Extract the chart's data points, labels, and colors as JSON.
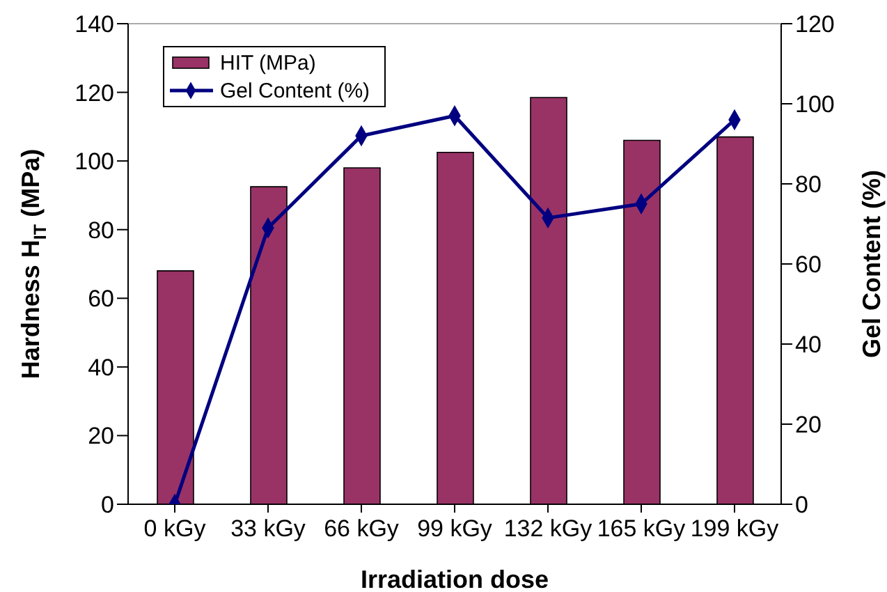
{
  "chart_data": {
    "type": "bar",
    "xlabel": "Irradiation dose",
    "ylabel": "Hardness H$_{IT}$ (MPa)",
    "y2label": "Gel Content (%)",
    "categories": [
      "0 kGy",
      "33 kGy",
      "66 kGy",
      "99 kGy",
      "132 kGy",
      "165 kGy",
      "199 kGy"
    ],
    "series": [
      {
        "name": "HIT (MPa)",
        "color": "#993366",
        "values": [
          68,
          92.5,
          98,
          102.5,
          118.5,
          106,
          107
        ]
      },
      {
        "name": "Gel Content (%)",
        "type": "line",
        "axis": "y2",
        "color": "#000080",
        "values": [
          0,
          69,
          92,
          97,
          71.5,
          75,
          96
        ]
      }
    ],
    "ylim": [
      0,
      140
    ],
    "yticks": [
      0,
      20,
      40,
      60,
      80,
      100,
      120,
      140
    ],
    "y2lim": [
      0,
      120
    ],
    "y2ticks": [
      0,
      20,
      40,
      60,
      80,
      100,
      120
    ],
    "legend": "top left",
    "marker": "diamond"
  }
}
